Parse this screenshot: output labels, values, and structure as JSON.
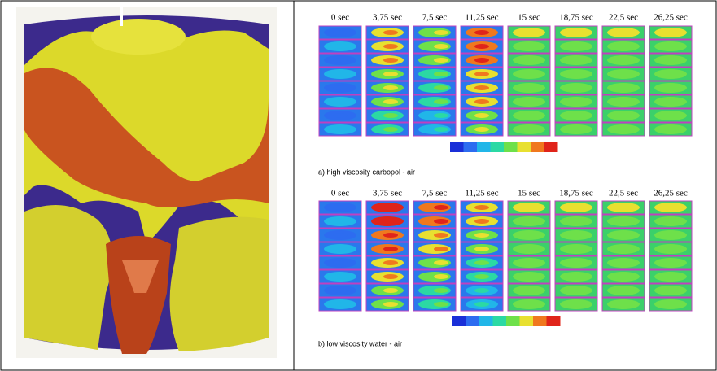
{
  "panel_a": {
    "times": [
      "0 sec",
      "3,75 sec",
      "7,5 sec",
      "11,25 sec",
      "15 sec",
      "18,75 sec",
      "22,5 sec",
      "26,25 sec"
    ],
    "caption": "a) high viscosity carbopol - air"
  },
  "panel_b": {
    "times": [
      "0 sec",
      "3,75 sec",
      "7,5 sec",
      "11,25 sec",
      "15 sec",
      "18,75 sec",
      "22,5 sec",
      "26,25 sec"
    ],
    "caption": "b) low viscosity water - air"
  }
}
